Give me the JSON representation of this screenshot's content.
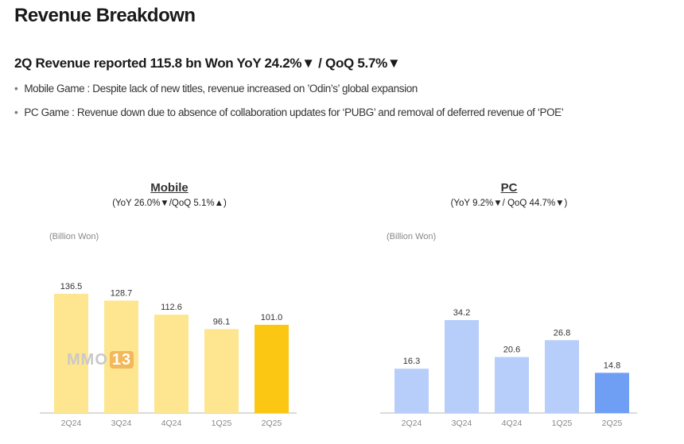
{
  "page": {
    "title": "Revenue Breakdown",
    "headline": "2Q Revenue reported 115.8 bn Won YoY 24.2%▼ / QoQ 5.7%▼",
    "bullets": [
      "Mobile Game : Despite lack of new titles, revenue increased on ’Odin’s’ global expansion",
      "PC Game : Revenue down due to absence of collaboration updates for ‘PUBG’ and removal of deferred revenue of ‘POE’"
    ],
    "watermark": {
      "text": "MMO",
      "highlight": "13"
    }
  },
  "chart_data": [
    {
      "type": "bar",
      "title": "Mobile",
      "subtitle": "(YoY 26.0%▼/QoQ 5.1%▲)",
      "unit_label": "(Billion Won)",
      "categories": [
        "2Q24",
        "3Q24",
        "4Q24",
        "1Q25",
        "2Q25"
      ],
      "values": [
        136.5,
        128.7,
        112.6,
        96.1,
        101.0
      ],
      "value_labels": [
        "136.5",
        "128.7",
        "112.6",
        "96.1",
        "101.0"
      ],
      "colors": [
        "#fde68f",
        "#fde68f",
        "#fde68f",
        "#fde68f",
        "#fbc712"
      ],
      "highlight_index": 4,
      "ylim": [
        0,
        150
      ]
    },
    {
      "type": "bar",
      "title": "PC",
      "subtitle": "(YoY 9.2%▼/ QoQ 44.7%▼)",
      "unit_label": "(Billion Won)",
      "categories": [
        "2Q24",
        "3Q24",
        "4Q24",
        "1Q25",
        "2Q25"
      ],
      "values": [
        16.3,
        34.2,
        20.6,
        26.8,
        14.8
      ],
      "value_labels": [
        "16.3",
        "34.2",
        "20.6",
        "26.8",
        "14.8"
      ],
      "colors": [
        "#b7cdfa",
        "#b7cdfa",
        "#b7cdfa",
        "#b7cdfa",
        "#6e9ff5"
      ],
      "highlight_index": 4,
      "ylim": [
        0,
        38
      ]
    }
  ]
}
